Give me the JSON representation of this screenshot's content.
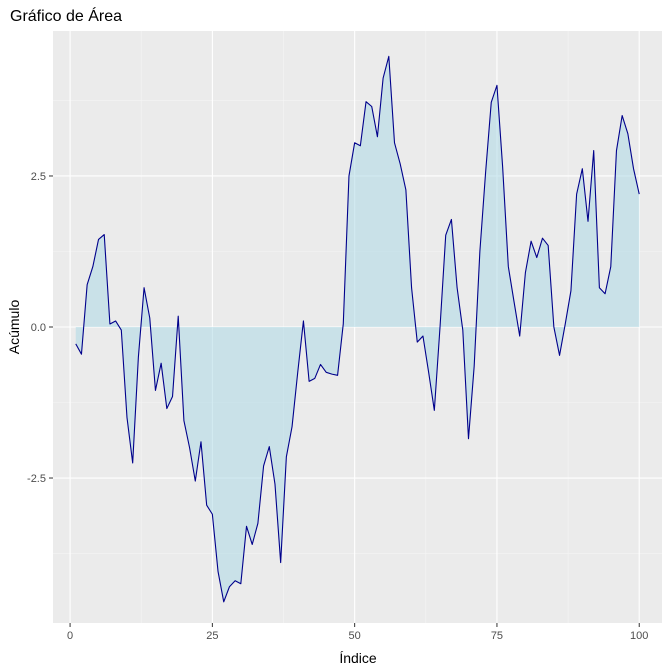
{
  "chart_data": {
    "type": "area",
    "title": "Gráfico de Área",
    "xlabel": "Índice",
    "ylabel": "Acúmulo",
    "xlim": [
      -3,
      104
    ],
    "ylim": [
      -4.9,
      4.9
    ],
    "x_ticks": [
      0,
      25,
      50,
      75,
      100
    ],
    "x_tick_labels": [
      "0",
      "25",
      "50",
      "75",
      "100"
    ],
    "y_ticks": [
      -2.5,
      0,
      2.5
    ],
    "y_tick_labels": [
      "-2.5",
      "0.0",
      "2.5"
    ],
    "grid": true,
    "legend": "none",
    "baseline": 0,
    "colors": {
      "panel": "#ebebeb",
      "grid_major": "#ffffff",
      "grid_minor": "#f5f5f5",
      "fill": "#add8e6",
      "line": "#00008b",
      "tick_mark": "#333333"
    },
    "x": [
      1,
      2,
      3,
      4,
      5,
      6,
      7,
      8,
      9,
      10,
      11,
      12,
      13,
      14,
      15,
      16,
      17,
      18,
      19,
      20,
      21,
      22,
      23,
      24,
      25,
      26,
      27,
      28,
      29,
      30,
      31,
      32,
      33,
      34,
      35,
      36,
      37,
      38,
      39,
      40,
      41,
      42,
      43,
      44,
      45,
      46,
      47,
      48,
      49,
      50,
      51,
      52,
      53,
      54,
      55,
      56,
      57,
      58,
      59,
      60,
      61,
      62,
      63,
      64,
      65,
      66,
      67,
      68,
      69,
      70,
      71,
      72,
      73,
      74,
      75,
      76,
      77,
      78,
      79,
      80,
      81,
      82,
      83,
      84,
      85,
      86,
      87,
      88,
      89,
      90,
      91,
      92,
      93,
      94,
      95,
      96,
      97,
      98,
      99,
      100
    ],
    "values": [
      -0.28,
      -0.45,
      0.7,
      1.0,
      1.45,
      1.53,
      0.05,
      0.1,
      -0.05,
      -1.5,
      -2.25,
      -0.5,
      0.65,
      0.15,
      -1.05,
      -0.6,
      -1.35,
      -1.15,
      0.18,
      -1.55,
      -2.0,
      -2.55,
      -1.9,
      -2.95,
      -3.1,
      -4.05,
      -4.55,
      -4.3,
      -4.2,
      -4.25,
      -3.3,
      -3.6,
      -3.25,
      -2.3,
      -1.98,
      -2.6,
      -3.9,
      -2.15,
      -1.65,
      -0.75,
      0.1,
      -0.9,
      -0.85,
      -0.62,
      -0.75,
      -0.78,
      -0.8,
      0.05,
      2.5,
      3.05,
      3.0,
      3.73,
      3.65,
      3.15,
      4.12,
      4.48,
      3.05,
      2.7,
      2.27,
      0.65,
      -0.25,
      -0.15,
      -0.75,
      -1.38,
      0.0,
      1.52,
      1.78,
      0.65,
      -0.05,
      -1.85,
      -0.65,
      1.25,
      2.55,
      3.72,
      4.0,
      2.65,
      1.0,
      0.42,
      -0.15,
      0.9,
      1.42,
      1.15,
      1.47,
      1.35,
      0.0,
      -0.47,
      0.05,
      0.6,
      2.2,
      2.62,
      1.75,
      2.92,
      0.65,
      0.55,
      1.0,
      2.92,
      3.5,
      3.2,
      2.62,
      2.2
    ]
  }
}
